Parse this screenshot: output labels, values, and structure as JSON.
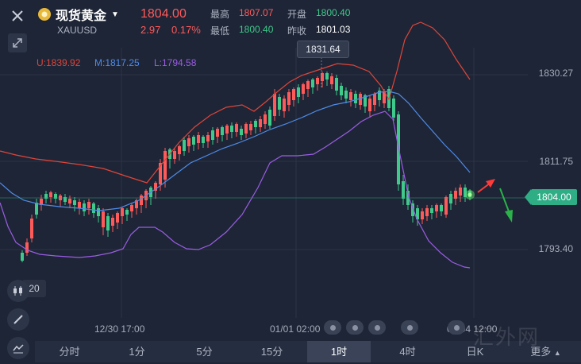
{
  "header": {
    "close_icon": "close-icon",
    "fullscreen_icon": "expand-icon",
    "title": "现货黄金",
    "symbol": "XAUUSD",
    "price": "1804.00",
    "change": "2.97",
    "change_pct": "0.17%",
    "stats": {
      "high_label": "最高",
      "high_value": "1807.07",
      "open_label": "开盘",
      "open_value": "1800.40",
      "low_label": "最低",
      "low_value": "1800.40",
      "prev_label": "昨收",
      "prev_value": "1801.03"
    }
  },
  "bollinger": {
    "upper": "U:1839.92",
    "middle": "M:1817.25",
    "lower": "L:1794.58",
    "colors": {
      "upper": "#e0453a",
      "middle": "#4f8be8",
      "lower": "#9b5de5"
    }
  },
  "tooltip": "1831.64",
  "current_price_tag": "1804.00",
  "y_axis": [
    "1830.27",
    "1811.75",
    "1793.40"
  ],
  "x_axis": [
    "12/30 17:00",
    "01/01 02:00",
    "01/04 12:00"
  ],
  "side_value": "20",
  "tabs": [
    {
      "label": "分时",
      "active": false
    },
    {
      "label": "1分",
      "active": false
    },
    {
      "label": "5分",
      "active": false
    },
    {
      "label": "15分",
      "active": false
    },
    {
      "label": "1时",
      "active": true
    },
    {
      "label": "4时",
      "active": false
    },
    {
      "label": "日K",
      "active": false
    },
    {
      "label": "更多",
      "active": false
    }
  ],
  "watermark": "汇外网",
  "colors": {
    "up": "#ff5a5a",
    "down": "#3fc98a",
    "background": "#1e2536"
  }
}
